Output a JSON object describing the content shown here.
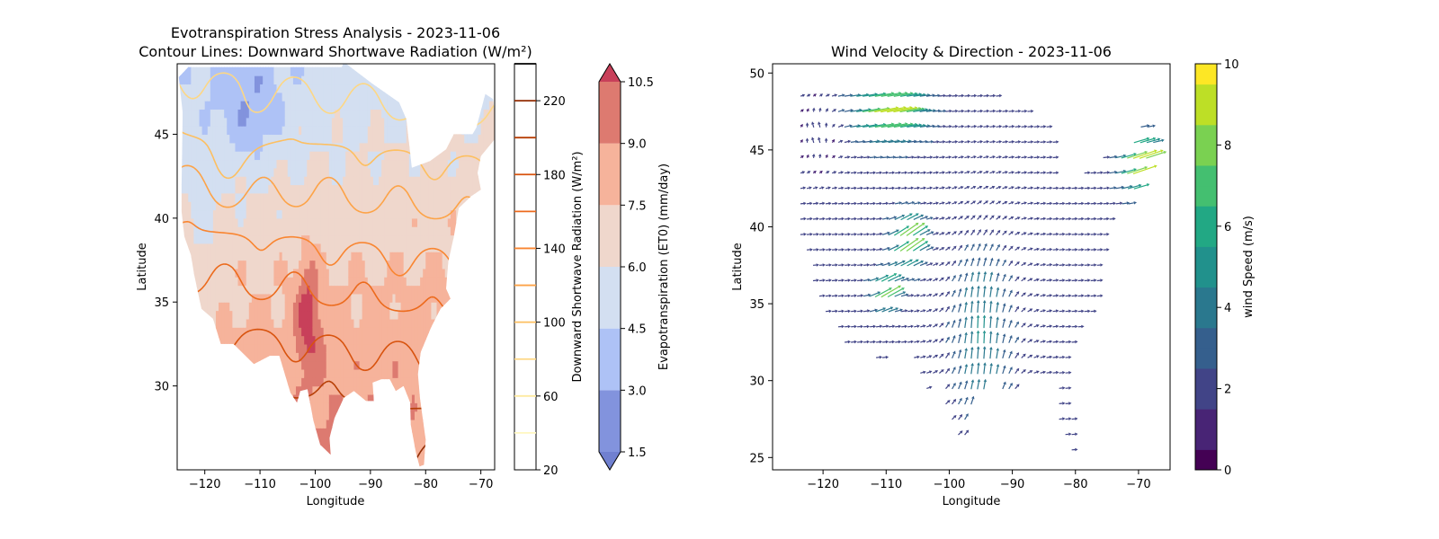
{
  "figure": {
    "background": "#ffffff"
  },
  "chart_data": [
    {
      "type": "contour",
      "title": "Evotranspiration Stress Analysis - 2023-11-06",
      "subtitle": "Contour Lines: Downward Shortwave Radiation (W/m²)",
      "xlabel": "Longitude",
      "ylabel": "Latitude",
      "xlim": [
        -125,
        -67.5
      ],
      "ylim": [
        25,
        49.2
      ],
      "xticks": [
        -120,
        -110,
        -100,
        -90,
        -80,
        -70
      ],
      "yticks": [
        30,
        35,
        40,
        45
      ],
      "filled_field": {
        "name": "Evapotranspiration (ET0) (mm/day)",
        "levels": [
          1.5,
          3.0,
          4.5,
          6.0,
          7.5,
          9.0,
          10.5
        ],
        "colors": [
          "#8293dd",
          "#aec2f6",
          "#d3dff1",
          "#efd7cc",
          "#f6b39b",
          "#dd7a70"
        ],
        "extend_colors": {
          "under": "#7080d0",
          "over": "#c8405a"
        }
      },
      "line_field": {
        "name": "Downward Shortwave Radiation (W/m²)",
        "levels": [
          40,
          60,
          80,
          100,
          120,
          140,
          160,
          180,
          200,
          220,
          240
        ],
        "colors": [
          "#fff7c0",
          "#feeaa0",
          "#fdd784",
          "#fdbf60",
          "#fda347",
          "#f98530",
          "#ec6a1c",
          "#d8530e",
          "#b73f06",
          "#922d04",
          "#000000"
        ]
      },
      "colorbars": [
        {
          "label": "Downward Shortwave Radiation (W/m²)",
          "range": [
            20,
            240
          ],
          "ticks": [
            20,
            60,
            100,
            140,
            180,
            220
          ]
        },
        {
          "label": "Evapotranspiration (ET0) (mm/day)",
          "range": [
            1.5,
            10.5
          ],
          "ticks": [
            1.5,
            3.0,
            4.5,
            6.0,
            7.5,
            9.0,
            10.5
          ],
          "tick_labels": [
            "1.5",
            "3.0",
            "4.5",
            "6.0",
            "7.5",
            "9.0",
            "10.5"
          ],
          "extend": "both"
        }
      ]
    },
    {
      "type": "quiver",
      "title": "Wind Velocity & Direction - 2023-11-06",
      "xlabel": "Longitude",
      "ylabel": "Latitude",
      "xlim": [
        -128,
        -65
      ],
      "ylim": [
        24.2,
        50.6
      ],
      "xticks": [
        -120,
        -110,
        -100,
        -90,
        -80,
        -70
      ],
      "yticks": [
        25,
        30,
        35,
        40,
        45,
        50
      ],
      "grid_spacing_deg": 1,
      "colorbar": {
        "label": "wind Speed (m/s)",
        "range": [
          0,
          10
        ],
        "ticks": [
          0,
          2,
          4,
          6,
          8,
          10
        ],
        "colormap": "viridis"
      },
      "wind_pattern": {
        "background": {
          "direction": "westerly",
          "speed": 2.5
        },
        "strong_zones": [
          {
            "lon": -110,
            "lat": 47.5,
            "speed": 9,
            "direction": "west-southwesterly"
          },
          {
            "lon": -107,
            "lat": 39,
            "speed": 9,
            "direction": "southwesterly"
          },
          {
            "lon": -110.5,
            "lat": 35.7,
            "speed": 8.5,
            "direction": "southwesterly"
          },
          {
            "lon": -70,
            "lat": 44,
            "speed": 9,
            "direction": "west-southwesterly"
          }
        ],
        "southerly_band": {
          "lon_range": [
            -102,
            -88
          ],
          "lat_range": [
            26,
            40
          ],
          "speed": 5
        }
      }
    }
  ]
}
